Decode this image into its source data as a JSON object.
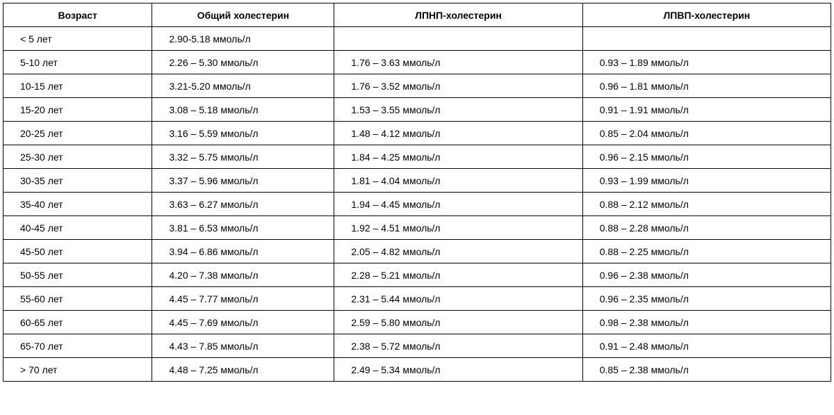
{
  "table": {
    "columns": [
      "Возраст",
      "Общий холестерин",
      "ЛПНП-холестерин",
      "ЛПВП-холестерин"
    ],
    "rows": [
      [
        "< 5 лет",
        "2.90-5.18 ммоль/л",
        "",
        ""
      ],
      [
        "5-10 лет",
        "2.26 – 5.30 ммоль/л",
        "1.76 – 3.63 ммоль/л",
        "0.93 – 1.89 ммоль/л"
      ],
      [
        "10-15 лет",
        "3.21-5.20 ммоль/л",
        "1.76 – 3.52 ммоль/л",
        "0.96 – 1.81 ммоль/л"
      ],
      [
        "15-20 лет",
        "3.08 – 5.18 ммоль/л",
        "1.53 – 3.55 ммоль/л",
        "0.91 – 1.91 ммоль/л"
      ],
      [
        "20-25 лет",
        "3.16 – 5.59 ммоль/л",
        "1.48 – 4.12 ммоль/л",
        "0.85 – 2.04 ммоль/л"
      ],
      [
        "25-30 лет",
        "3.32 – 5.75 ммоль/л",
        "1.84 – 4.25 ммоль/л",
        "0.96 – 2.15 ммоль/л"
      ],
      [
        "30-35 лет",
        "3.37 – 5.96 ммоль/л",
        "1.81 – 4.04 ммоль/л",
        "0.93 – 1.99 ммоль/л"
      ],
      [
        "35-40 лет",
        "3.63 – 6.27 ммоль/л",
        "1.94 – 4.45 ммоль/л",
        "0.88 – 2.12 ммоль/л"
      ],
      [
        "40-45 лет",
        "3.81 – 6.53 ммоль/л",
        "1.92 – 4.51 ммоль/л",
        "0.88 – 2.28 ммоль/л"
      ],
      [
        "45-50 лет",
        "3.94 – 6.86 ммоль/л",
        "2.05 – 4.82 ммоль/л",
        "0.88 – 2.25 ммоль/л"
      ],
      [
        "50-55 лет",
        "4.20 – 7.38 ммоль/л",
        "2.28 – 5.21 ммоль/л",
        "0.96 – 2.38 ммоль/л"
      ],
      [
        "55-60 лет",
        "4.45 – 7.77 ммоль/л",
        "2.31 – 5.44 ммоль/л",
        "0.96 – 2.35 ммоль/л"
      ],
      [
        "60-65 лет",
        "4.45 – 7.69 ммоль/л",
        "2.59 – 5.80 ммоль/л",
        "0.98 – 2.38 ммоль/л"
      ],
      [
        "65-70 лет",
        "4.43 – 7.85 ммоль/л",
        "2.38 – 5.72 ммоль/л",
        "0.91 – 2.48 ммоль/л"
      ],
      [
        "> 70 лет",
        "4.48 – 7.25 ммоль/л",
        "2.49 – 5.34 ммоль/л",
        "0.85 – 2.38 ммоль/л"
      ]
    ],
    "column_classes": [
      "col-age",
      "col-total",
      "col-ldl",
      "col-hdl"
    ],
    "border_color": "#000000",
    "background_color": "#ffffff",
    "text_color": "#000000",
    "font_size": 14,
    "header_font_weight": "bold"
  }
}
